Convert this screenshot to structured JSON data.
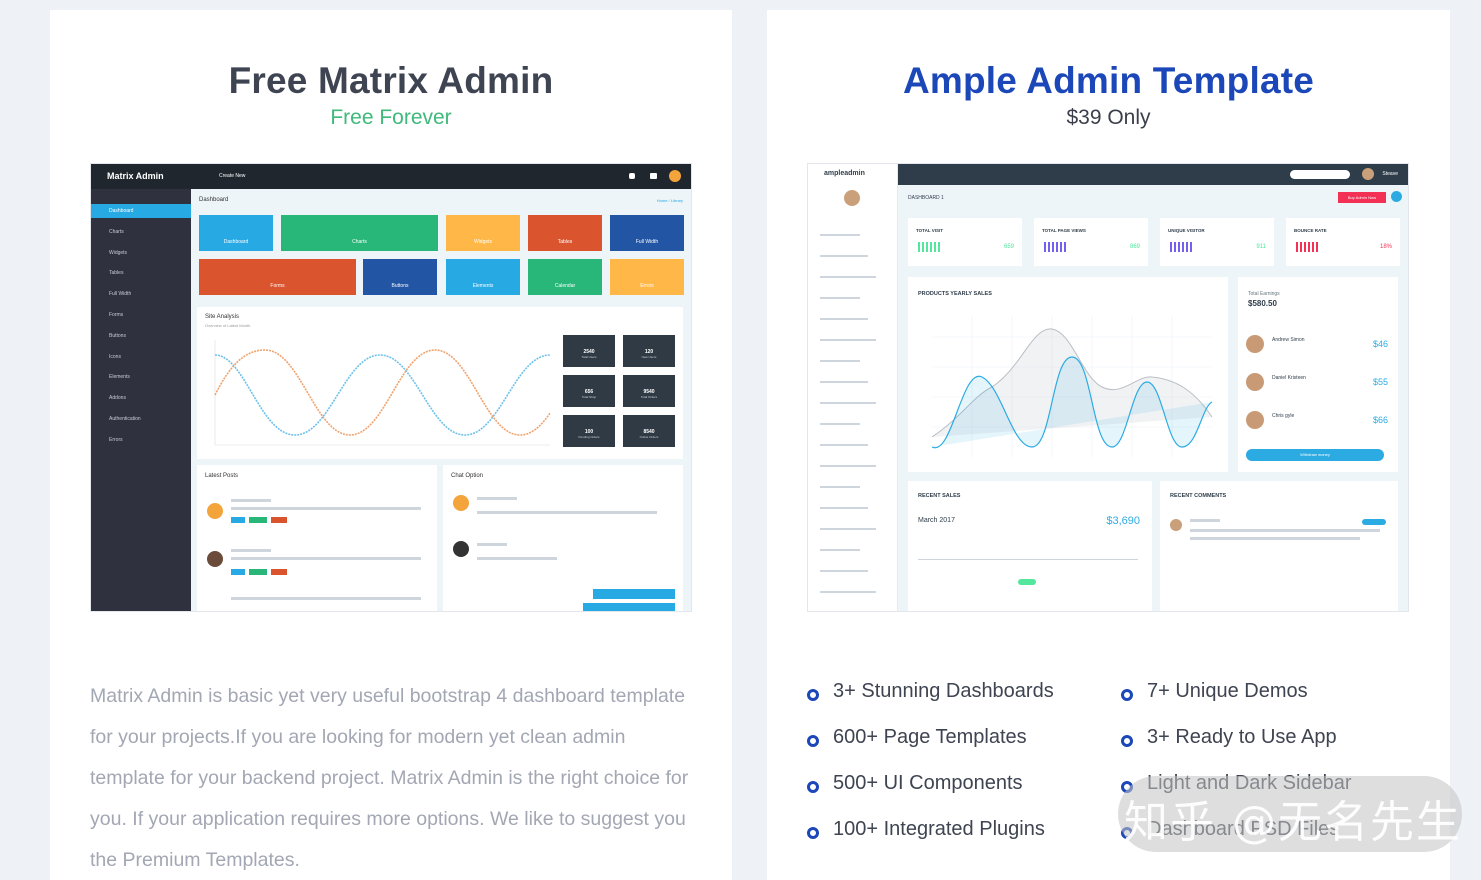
{
  "left_card": {
    "title": "Free Matrix Admin",
    "subtitle": "Free Forever",
    "description": "Matrix Admin is basic yet very useful bootstrap 4 dashboard template for your projects.If you are looking for modern yet clean admin template for your backend project. Matrix Admin is the right choice for you. If your application requires more options. We like to suggest you the Premium Templates.",
    "preview": {
      "logo": "Matrix Admin",
      "top_menu": "Create New",
      "page_title": "Dashboard",
      "breadcrumb": "Home / Library",
      "sidebar": [
        "Dashboard",
        "Charts",
        "Widgets",
        "Tables",
        "Full Width",
        "Forms",
        "Buttons",
        "Icons",
        "Elements",
        "Addons",
        "Authentication",
        "Errors"
      ],
      "tiles": [
        "Dashboard",
        "Charts",
        "Widgets",
        "Tables",
        "Full Width",
        "Forms",
        "Buttons",
        "Elements",
        "Calendar",
        "Errors"
      ],
      "analysis_title": "Site Analysis",
      "analysis_sub": "Overview of Latest Month",
      "stats": [
        {
          "value": "2540",
          "label": "Total Users"
        },
        {
          "value": "120",
          "label": "New Users"
        },
        {
          "value": "656",
          "label": "Total Shop"
        },
        {
          "value": "9540",
          "label": "Total Orders"
        },
        {
          "value": "100",
          "label": "Pending Orders"
        },
        {
          "value": "8540",
          "label": "Online Orders"
        }
      ],
      "latest_posts": "Latest Posts",
      "chat_option": "Chat Option"
    }
  },
  "right_card": {
    "title": "Ample Admin Template",
    "subtitle": "$39 Only",
    "features_left": [
      "3+ Stunning Dashboards",
      "600+ Page Templates",
      "500+ UI Components",
      "100+ Integrated Plugins"
    ],
    "features_right": [
      "7+ Unique Demos",
      "3+ Ready to Use App",
      "Light and Dark Sidebar",
      "Dashboard PSD Files"
    ],
    "preview": {
      "logo": "ampleadmin",
      "user": "Steave",
      "page_title": "DASHBOARD 1",
      "buy_button": "Buy Admin Now",
      "stat_cards": [
        {
          "label": "TOTAL VISIT",
          "value": "659"
        },
        {
          "label": "TOTAL PAGE VIEWS",
          "value": "869"
        },
        {
          "label": "UNIQUE VISITOR",
          "value": "911"
        },
        {
          "label": "BOUNCE RATE",
          "value": "18%"
        }
      ],
      "chart_title": "PRODUCTS YEARLY SALES",
      "earnings_label": "Total Earnings",
      "earnings_value": "$580.50",
      "people": [
        {
          "name": "Andrew Simon",
          "amount": "$46"
        },
        {
          "name": "Daniel Kristeen",
          "amount": "$55"
        },
        {
          "name": "Chris gyle",
          "amount": "$66"
        }
      ],
      "withdraw": "Withdraw money",
      "recent_sales": "RECENT SALES",
      "sales_month": "March 2017",
      "sales_amount": "$3,690",
      "recent_comments": "RECENT COMMENTS"
    }
  },
  "watermark": "知乎 @无名先生",
  "colors": {
    "page_bg": "#eef2f7",
    "accent_blue": "#1b47b8",
    "green": "#3fba7b",
    "muted": "#a2a7b3"
  }
}
